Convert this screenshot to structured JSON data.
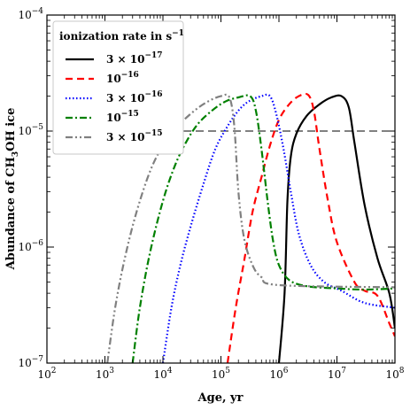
{
  "chart_data": {
    "type": "line",
    "xscale": "log",
    "yscale": "log",
    "xlim": [
      100,
      100000000
    ],
    "ylim": [
      1e-07,
      0.0001
    ],
    "xlabel": "Age, yr",
    "ylabel_parts": [
      "Abundance of CH",
      "3",
      "OH ice"
    ],
    "x_ticks": [
      {
        "value": 100,
        "base": "10",
        "exp": "2"
      },
      {
        "value": 1000,
        "base": "10",
        "exp": "3"
      },
      {
        "value": 10000,
        "base": "10",
        "exp": "4"
      },
      {
        "value": 100000,
        "base": "10",
        "exp": "5"
      },
      {
        "value": 1000000,
        "base": "10",
        "exp": "6"
      },
      {
        "value": 10000000,
        "base": "10",
        "exp": "7"
      },
      {
        "value": 100000000,
        "base": "10",
        "exp": "8"
      }
    ],
    "y_ticks": [
      {
        "value": 1e-07,
        "base": "10",
        "exp": "−7"
      },
      {
        "value": 1e-06,
        "base": "10",
        "exp": "−6"
      },
      {
        "value": 1e-05,
        "base": "10",
        "exp": "−5"
      },
      {
        "value": 0.0001,
        "base": "10",
        "exp": "−4"
      }
    ],
    "reference_line": {
      "y": 1e-05,
      "style": "dashed",
      "color": "#000000"
    },
    "legend": {
      "placement": "upper-left",
      "title_main": "ionization rate in s",
      "title_sup": "−1"
    },
    "series": [
      {
        "label_pre": "3 × 10",
        "label_sup": "−17",
        "color": "#000000",
        "dash": "none",
        "points": [
          [
            1000000.0,
            1e-07
          ],
          [
            1250000.0,
            4e-07
          ],
          [
            1400000.0,
            2.5e-06
          ],
          [
            1600000.0,
            6e-06
          ],
          [
            2000000.0,
            9.5e-06
          ],
          [
            3000000.0,
            1.35e-05
          ],
          [
            5000000.0,
            1.7e-05
          ],
          [
            8000000.0,
            1.95e-05
          ],
          [
            12000000.0,
            2e-05
          ],
          [
            16000000.0,
            1.6e-05
          ],
          [
            20000000.0,
            8e-06
          ],
          [
            30000000.0,
            2.3e-06
          ],
          [
            50000000.0,
            8e-07
          ],
          [
            80000000.0,
            4e-07
          ],
          [
            100000000.0,
            2e-07
          ]
        ]
      },
      {
        "label_pre": "10",
        "label_sup": "−16",
        "color": "#ff0000",
        "dash": "8,5",
        "points": [
          [
            130000.0,
            1e-07
          ],
          [
            180000.0,
            3e-07
          ],
          [
            250000.0,
            7.5e-07
          ],
          [
            350000.0,
            2e-06
          ],
          [
            500000.0,
            4e-06
          ],
          [
            700000.0,
            7.5e-06
          ],
          [
            1000000.0,
            1.25e-05
          ],
          [
            1500000.0,
            1.7e-05
          ],
          [
            2200000.0,
            2e-05
          ],
          [
            3200000.0,
            2.05e-05
          ],
          [
            4000000.0,
            1.5e-05
          ],
          [
            5000000.0,
            7e-06
          ],
          [
            7000000.0,
            2.5e-06
          ],
          [
            10000000.0,
            1.1e-06
          ],
          [
            20000000.0,
            5e-07
          ],
          [
            30000000.0,
            4.2e-07
          ],
          [
            50000000.0,
            3.8e-07
          ],
          [
            80000000.0,
            2.2e-07
          ],
          [
            100000000.0,
            1.7e-07
          ]
        ]
      },
      {
        "label_pre": "3 × 10",
        "label_sup": "−16",
        "color": "#0000ff",
        "dash": "1.5,2.5",
        "points": [
          [
            10000.0,
            1e-07
          ],
          [
            14000.0,
            3e-07
          ],
          [
            20000.0,
            7e-07
          ],
          [
            30000.0,
            1.5e-06
          ],
          [
            50000.0,
            3.5e-06
          ],
          [
            80000.0,
            7e-06
          ],
          [
            130000.0,
            1.1e-05
          ],
          [
            200000.0,
            1.5e-05
          ],
          [
            300000.0,
            1.8e-05
          ],
          [
            500000.0,
            2e-05
          ],
          [
            700000.0,
            2e-05
          ],
          [
            900000.0,
            1.4e-05
          ],
          [
            1200000.0,
            7e-06
          ],
          [
            1600000.0,
            3e-06
          ],
          [
            2200000.0,
            1.3e-06
          ],
          [
            3500000.0,
            7e-07
          ],
          [
            6000000.0,
            5e-07
          ],
          [
            12000000.0,
            4.2e-07
          ],
          [
            30000000.0,
            3.3e-07
          ],
          [
            100000000.0,
            3e-07
          ]
        ]
      },
      {
        "label_pre": "10",
        "label_sup": "−15",
        "color": "#008000",
        "dash": "8,3,2,3",
        "points": [
          [
            3000.0,
            1e-07
          ],
          [
            4000.0,
            3e-07
          ],
          [
            6000.0,
            9e-07
          ],
          [
            10000.0,
            2.5e-06
          ],
          [
            16000.0,
            5e-06
          ],
          [
            25000.0,
            8e-06
          ],
          [
            40000.0,
            1.15e-05
          ],
          [
            70000.0,
            1.5e-05
          ],
          [
            120000.0,
            1.8e-05
          ],
          [
            200000.0,
            1.95e-05
          ],
          [
            320000.0,
            2e-05
          ],
          [
            400000.0,
            1.5e-05
          ],
          [
            500000.0,
            7e-06
          ],
          [
            650000.0,
            2.3e-06
          ],
          [
            800000.0,
            1.1e-06
          ],
          [
            1000000.0,
            7e-07
          ],
          [
            1500000.0,
            5.2e-07
          ],
          [
            3000000.0,
            4.6e-07
          ],
          [
            10000000.0,
            4.4e-07
          ],
          [
            30000000.0,
            4.3e-07
          ],
          [
            100000000.0,
            4.4e-07
          ]
        ]
      },
      {
        "label_pre": "3 × 10",
        "label_sup": "−15",
        "color": "#808080",
        "dash": "8,3,2,3,2,3",
        "points": [
          [
            1100.0,
            1e-07
          ],
          [
            1500.0,
            3e-07
          ],
          [
            2200.0,
            8e-07
          ],
          [
            3500.0,
            2e-06
          ],
          [
            6000.0,
            4.5e-06
          ],
          [
            10000.0,
            7.5e-06
          ],
          [
            18000.0,
            1.1e-05
          ],
          [
            35000.0,
            1.5e-05
          ],
          [
            60000.0,
            1.8e-05
          ],
          [
            100000.0,
            2e-05
          ],
          [
            140000.0,
            1.95e-05
          ],
          [
            170000.0,
            1.1e-05
          ],
          [
            200000.0,
            3e-06
          ],
          [
            250000.0,
            1.2e-06
          ],
          [
            350000.0,
            7e-07
          ],
          [
            500000.0,
            5.5e-07
          ],
          [
            1000000.0,
            4.7e-07
          ],
          [
            100000000.0,
            4.5e-07
          ]
        ]
      }
    ]
  }
}
